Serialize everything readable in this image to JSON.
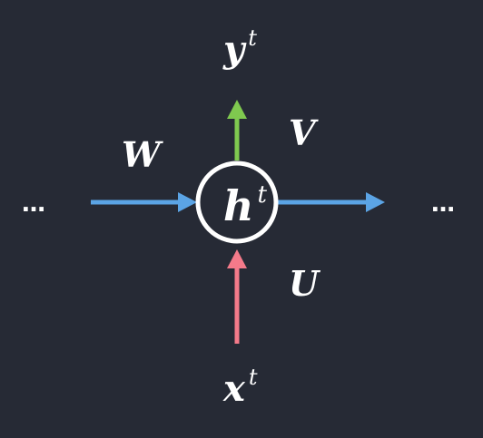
{
  "diagram": {
    "colors": {
      "background": "#262a35",
      "recurrent_arrow": "#5ba4e5",
      "output_arrow": "#7fc94f",
      "input_arrow": "#f47a8a",
      "node_stroke": "#ffffff",
      "text": "#ffffff"
    },
    "node": {
      "base": "h",
      "superscript": "t"
    },
    "output": {
      "base": "y",
      "superscript": "t"
    },
    "input": {
      "base": "x",
      "superscript": "t"
    },
    "weights": {
      "recurrent": "W",
      "output": "V",
      "input": "U"
    },
    "ellipsis_left": "…",
    "ellipsis_right": "…"
  }
}
